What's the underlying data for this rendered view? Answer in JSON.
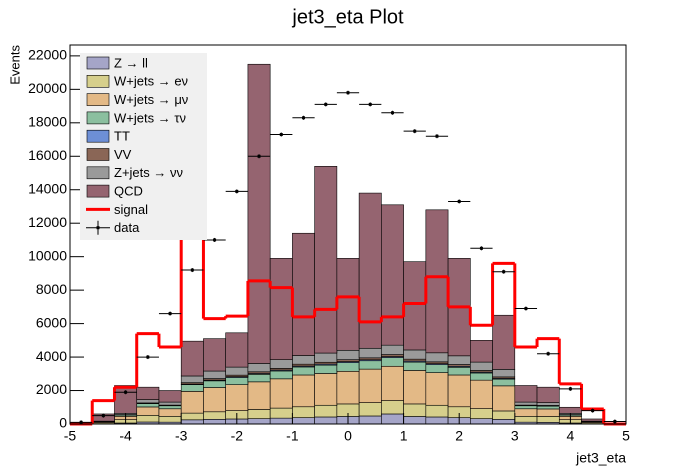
{
  "chart_data": {
    "type": "histogram",
    "stacked": true,
    "title": "jet3_eta Plot",
    "x_label": "jet3_eta",
    "y_label": "Events",
    "bins": [
      -5,
      -4.6,
      -4.2,
      -3.8,
      -3.4,
      -3,
      -2.6,
      -2.2,
      -1.8,
      -1.4,
      -1,
      -0.6,
      -0.2,
      0.2,
      0.6,
      1,
      1.4,
      1.8,
      2.2,
      2.6,
      3,
      3.4,
      3.8,
      4.2,
      4.6,
      5
    ],
    "xlim": [
      -5,
      5
    ],
    "xticks": [
      -5,
      -4,
      -3,
      -2,
      -1,
      0,
      1,
      2,
      3,
      4,
      5
    ],
    "ylim": [
      0,
      22650
    ],
    "yticks": [
      0,
      2000,
      4000,
      6000,
      8000,
      10000,
      12000,
      14000,
      16000,
      18000,
      20000,
      22000
    ],
    "series": [
      {
        "name": "Z → ll",
        "color": "#a5a5c8",
        "values": [
          0,
          20,
          60,
          120,
          110,
          250,
          280,
          300,
          320,
          350,
          380,
          420,
          450,
          480,
          600,
          450,
          420,
          380,
          320,
          280,
          110,
          100,
          60,
          20,
          0
        ]
      },
      {
        "name": "W+jets → eν",
        "color": "#d6cf8c",
        "values": [
          0,
          60,
          200,
          400,
          350,
          400,
          450,
          500,
          550,
          600,
          650,
          700,
          750,
          800,
          800,
          750,
          700,
          650,
          600,
          500,
          350,
          350,
          200,
          60,
          0
        ]
      },
      {
        "name": "W+jets → μν",
        "color": "#e3b986",
        "values": [
          0,
          50,
          200,
          500,
          450,
          1300,
          1450,
          1550,
          1650,
          1750,
          1900,
          1900,
          1950,
          2000,
          2050,
          2000,
          1950,
          1900,
          1700,
          1500,
          450,
          450,
          200,
          50,
          0
        ]
      },
      {
        "name": "W+jets → τν",
        "color": "#8bbf9f",
        "values": [
          0,
          20,
          80,
          200,
          180,
          400,
          400,
          430,
          450,
          470,
          480,
          500,
          520,
          500,
          520,
          500,
          480,
          460,
          430,
          400,
          180,
          170,
          80,
          20,
          0
        ]
      },
      {
        "name": "TT",
        "color": "#6d8fd6",
        "values": [
          0,
          0,
          5,
          10,
          10,
          40,
          45,
          50,
          50,
          55,
          55,
          60,
          60,
          60,
          60,
          60,
          55,
          55,
          50,
          45,
          10,
          10,
          5,
          0,
          0
        ]
      },
      {
        "name": "VV",
        "color": "#8a6656",
        "values": [
          0,
          5,
          15,
          30,
          30,
          80,
          90,
          90,
          100,
          100,
          110,
          110,
          115,
          115,
          120,
          115,
          110,
          110,
          100,
          90,
          30,
          30,
          15,
          5,
          0
        ]
      },
      {
        "name": "Z+jets → νν",
        "color": "#9a9a9a",
        "values": [
          0,
          15,
          80,
          200,
          180,
          400,
          450,
          480,
          500,
          520,
          520,
          550,
          560,
          570,
          560,
          550,
          540,
          520,
          500,
          450,
          180,
          170,
          80,
          15,
          0
        ]
      },
      {
        "name": "QCD",
        "color": "#956470",
        "values": [
          50,
          430,
          1660,
          740,
          690,
          2080,
          1935,
          2050,
          17880,
          6055,
          7305,
          11160,
          5495,
          9275,
          8390,
          5275,
          8545,
          5825,
          1300,
          3235,
          990,
          920,
          360,
          130,
          0
        ]
      }
    ],
    "signal": {
      "name": "signal",
      "color": "#ff0000",
      "values": [
        0,
        1400,
        2200,
        5400,
        4600,
        12900,
        6300,
        6450,
        8550,
        8150,
        6400,
        6850,
        7600,
        6100,
        6400,
        7200,
        8800,
        7000,
        5900,
        9600,
        4600,
        5100,
        2400,
        900,
        0
      ]
    },
    "data": {
      "name": "data",
      "color": "#000000",
      "values": [
        100,
        500,
        1900,
        4000,
        6600,
        9200,
        11000,
        13900,
        16000,
        17300,
        18300,
        19100,
        19800,
        19100,
        18600,
        17500,
        17200,
        13300,
        10500,
        9100,
        6900,
        4200,
        2100,
        800,
        150
      ]
    }
  }
}
